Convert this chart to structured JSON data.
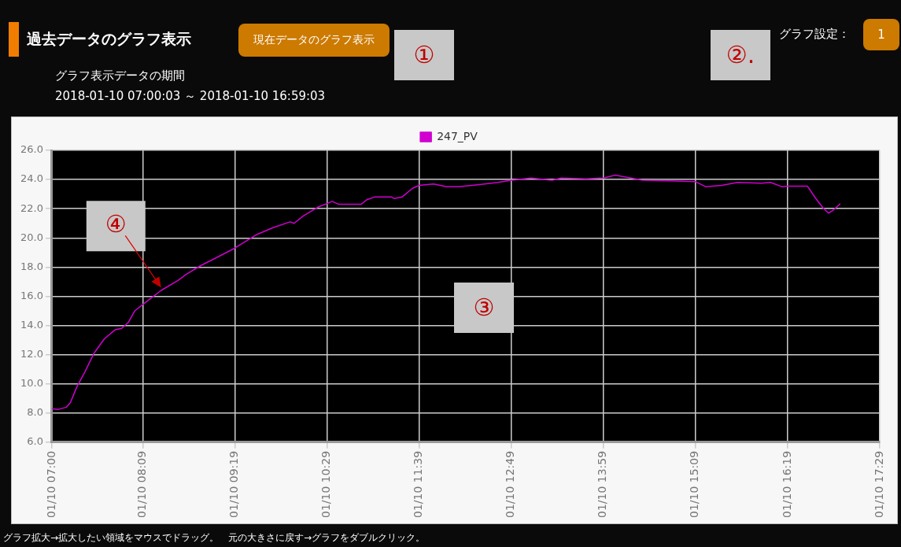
{
  "chart_data": {
    "type": "line",
    "title": "過去データのグラフ表示",
    "subtitle": "グラフ表示データの期間",
    "annotations": [
      "2018-01-10 07:00:03 ～ 2018-01-10 16:59:03",
      "現在データのグラフ表示",
      "グラフ設定：",
      "1",
      "①",
      "②.",
      "③",
      {
        "text": "④",
        "x": "2018-01-10T08:23",
        "y": 16.6
      },
      "グラフ拡大→拡大したい領域をマウスでドラッグ。　元の大きさに戻す→グラフをダブルクリック。"
    ],
    "xlim": [
      "2018-01-10T07:00",
      "2018-01-10T17:29"
    ],
    "xticks": [
      {
        "value": "2018-01-10T07:00",
        "label": "01/10 07:00"
      },
      {
        "value": "2018-01-10T08:09",
        "label": "01/10 08:09"
      },
      {
        "value": "2018-01-10T09:19",
        "label": "01/10 09:19"
      },
      {
        "value": "2018-01-10T10:29",
        "label": "01/10 10:29"
      },
      {
        "value": "2018-01-10T11:39",
        "label": "01/10 11:39"
      },
      {
        "value": "2018-01-10T12:49",
        "label": "01/10 12:49"
      },
      {
        "value": "2018-01-10T13:59",
        "label": "01/10 13:59"
      },
      {
        "value": "2018-01-10T15:09",
        "label": "01/10 15:09"
      },
      {
        "value": "2018-01-10T16:19",
        "label": "01/10 16:19"
      },
      {
        "value": "2018-01-10T17:29",
        "label": "01/10 17:29"
      }
    ],
    "ylim": [
      6,
      26
    ],
    "yticks": [
      {
        "value": 6,
        "label": "6.0"
      },
      {
        "value": 8,
        "label": "8.0"
      },
      {
        "value": 10,
        "label": "10.0"
      },
      {
        "value": 12,
        "label": "12.0"
      },
      {
        "value": 14,
        "label": "14.0"
      },
      {
        "value": 16,
        "label": "16.0"
      },
      {
        "value": 18,
        "label": "18.0"
      },
      {
        "value": 20,
        "label": "20.0"
      },
      {
        "value": 22,
        "label": "22.0"
      },
      {
        "value": 24,
        "label": "24.0"
      },
      {
        "value": 26,
        "label": "26.0"
      }
    ],
    "grid": true,
    "legend": "top",
    "x": [
      "2018-01-10T07:00",
      "2018-01-10T07:05",
      "2018-01-10T07:11",
      "2018-01-10T07:14",
      "2018-01-10T07:19",
      "2018-01-10T07:25",
      "2018-01-10T07:32",
      "2018-01-10T07:40",
      "2018-01-10T07:48",
      "2018-01-10T07:53",
      "2018-01-10T07:58",
      "2018-01-10T08:03",
      "2018-01-10T08:10",
      "2018-01-10T08:23",
      "2018-01-10T08:36",
      "2018-01-10T08:42",
      "2018-01-10T08:53",
      "2018-01-10T09:04",
      "2018-01-10T09:19",
      "2018-01-10T09:35",
      "2018-01-10T09:48",
      "2018-01-10T10:01",
      "2018-01-10T10:04",
      "2018-01-10T10:11",
      "2018-01-10T10:22",
      "2018-01-10T10:33",
      "2018-01-10T10:38",
      "2018-01-10T10:55",
      "2018-01-10T10:59",
      "2018-01-10T11:05",
      "2018-01-10T11:18",
      "2018-01-10T11:20",
      "2018-01-10T11:26",
      "2018-01-10T11:34",
      "2018-01-10T11:39",
      "2018-01-10T11:50",
      "2018-01-10T12:00",
      "2018-01-10T12:09",
      "2018-01-10T12:25",
      "2018-01-10T12:39",
      "2018-01-10T12:49",
      "2018-01-10T13:04",
      "2018-01-10T13:20",
      "2018-01-10T13:27",
      "2018-01-10T13:46",
      "2018-01-10T13:59",
      "2018-01-10T14:08",
      "2018-01-10T14:20",
      "2018-01-10T14:29",
      "2018-01-10T14:55",
      "2018-01-10T15:09",
      "2018-01-10T15:17",
      "2018-01-10T15:29",
      "2018-01-10T15:41",
      "2018-01-10T15:59",
      "2018-01-10T16:06",
      "2018-01-10T16:15",
      "2018-01-10T16:19",
      "2018-01-10T16:34",
      "2018-01-10T16:40",
      "2018-01-10T16:46",
      "2018-01-10T16:50",
      "2018-01-10T16:53",
      "2018-01-10T16:59"
    ],
    "series": [
      {
        "name": "247_PV",
        "color": "#d000d0",
        "values": [
          8.3,
          8.25,
          8.4,
          8.7,
          9.8,
          10.8,
          12.1,
          13.1,
          13.7,
          13.8,
          14.2,
          15,
          15.5,
          16.4,
          17.1,
          17.5,
          18.1,
          18.6,
          19.3,
          20.2,
          20.7,
          21.1,
          21,
          21.5,
          22.1,
          22.5,
          22.3,
          22.3,
          22.6,
          22.8,
          22.8,
          22.7,
          22.8,
          23.4,
          23.6,
          23.7,
          23.5,
          23.5,
          23.65,
          23.8,
          23.95,
          24.1,
          23.95,
          24.1,
          24.05,
          24.1,
          24.3,
          24.1,
          23.95,
          23.9,
          23.85,
          23.5,
          23.6,
          23.8,
          23.75,
          23.8,
          23.5,
          23.55,
          23.55,
          22.75,
          22.05,
          21.7,
          21.85,
          22.35
        ]
      }
    ]
  }
}
